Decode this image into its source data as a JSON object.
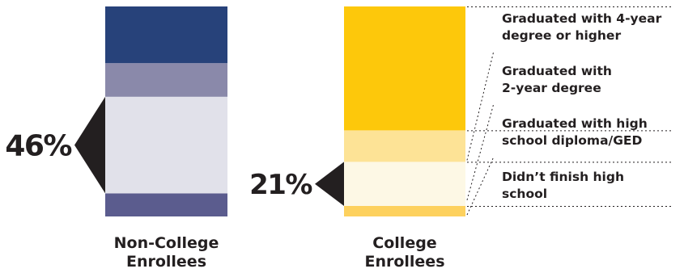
{
  "chart_data": {
    "type": "bar",
    "stacked": true,
    "normalized_percent": true,
    "categories": [
      "Non-College\nEnrollees",
      "College\nEnrollees"
    ],
    "category_labels": [
      [
        "Non-College",
        "Enrollees"
      ],
      [
        "College",
        "Enrollees"
      ]
    ],
    "series": [
      {
        "name": "Didn't finish high school",
        "label_lines": [
          "Didn’t finish high",
          "school"
        ],
        "values": [
          11,
          5
        ]
      },
      {
        "name": "Graduated with high school diploma/GED",
        "label_lines": [
          "Graduated with high",
          "school diploma/GED"
        ],
        "values": [
          46,
          21
        ]
      },
      {
        "name": "Graduated with 2-year degree",
        "label_lines": [
          "Graduated with",
          "2-year degree"
        ],
        "values": [
          16,
          15
        ]
      },
      {
        "name": "Graduated with 4-year degree or higher",
        "label_lines": [
          "Graduated with 4-year",
          "degree or higher"
        ],
        "values": [
          27,
          59
        ]
      }
    ],
    "colors": [
      [
        "#5b5c8e",
        "#e1e1ea",
        "#8a89aa",
        "#27427a"
      ],
      [
        "#fdd15e",
        "#fdf8e5",
        "#fde396",
        "#fdc80b"
      ]
    ],
    "callouts": [
      {
        "category_index": 0,
        "series_index": 1,
        "label": "46%"
      },
      {
        "category_index": 1,
        "series_index": 1,
        "label": "21%"
      }
    ],
    "callout_color": "#231f20",
    "legend_placement": "right",
    "ylim": [
      0,
      100
    ]
  }
}
